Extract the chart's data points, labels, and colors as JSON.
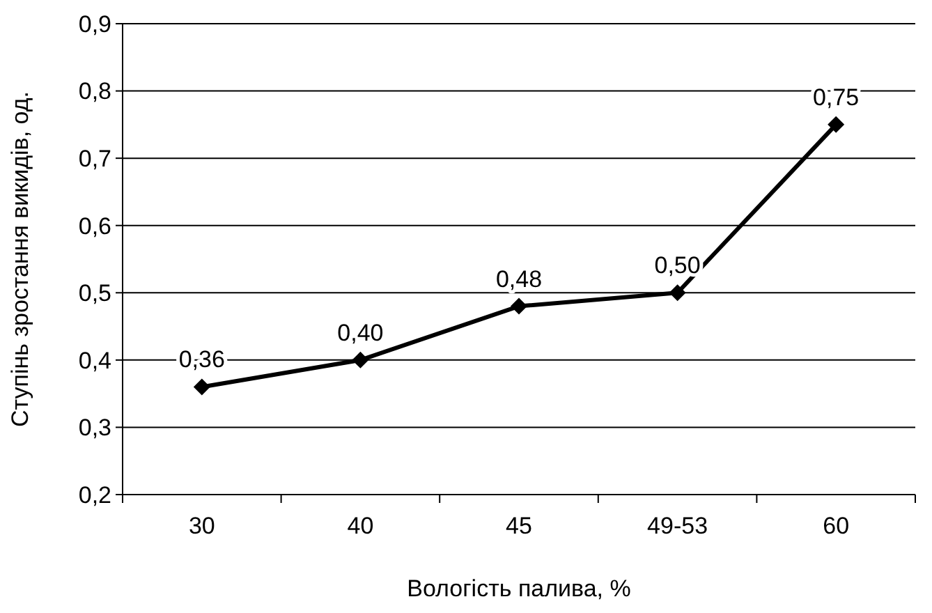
{
  "chart_data": {
    "type": "line",
    "xlabel": "Вологість палива, %",
    "ylabel": "Ступінь зростання викидів, од.",
    "categories": [
      "30",
      "40",
      "45",
      "49-53",
      "60"
    ],
    "series": [
      {
        "color": "#000000",
        "values": [
          0.36,
          0.4,
          0.48,
          0.5,
          0.75
        ],
        "value_labels": [
          "0,36",
          "0,40",
          "0,48",
          "0,50",
          "0,75"
        ]
      }
    ],
    "ylim": [
      0.2,
      0.9
    ],
    "yticks": [
      {
        "value": 0.2,
        "label": "0,2"
      },
      {
        "value": 0.3,
        "label": "0,3"
      },
      {
        "value": 0.4,
        "label": "0,4"
      },
      {
        "value": 0.5,
        "label": "0,5"
      },
      {
        "value": 0.6,
        "label": "0,6"
      },
      {
        "value": 0.7,
        "label": "0,7"
      },
      {
        "value": 0.8,
        "label": "0,8"
      },
      {
        "value": 0.9,
        "label": "0,9"
      }
    ],
    "grid": "y",
    "marker": "diamond",
    "line_style": "solid"
  }
}
